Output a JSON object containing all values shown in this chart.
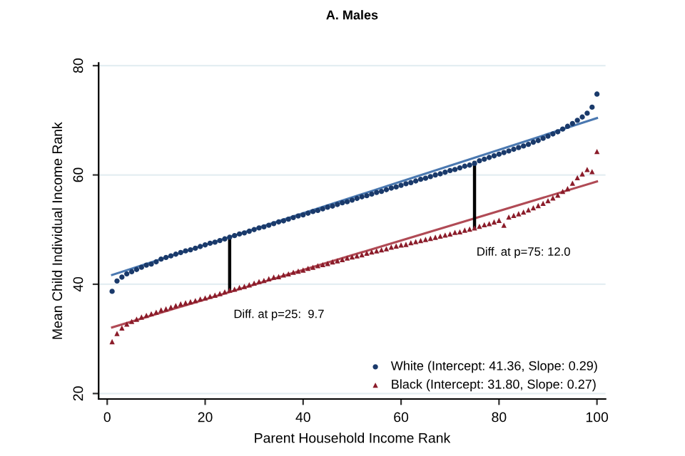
{
  "chart_data": {
    "type": "scatter",
    "title": "A. Males",
    "xlabel": "Parent Household Income Rank",
    "ylabel": "Mean Child Individual Income Rank",
    "xlim": [
      -1.75,
      101.75
    ],
    "ylim": [
      19,
      80.5
    ],
    "xticks": [
      0,
      20,
      40,
      60,
      80,
      100
    ],
    "yticks": [
      20,
      40,
      60,
      80
    ],
    "grid": "y",
    "legend": "bottom right",
    "x": [
      1,
      2,
      3,
      4,
      5,
      6,
      7,
      8,
      9,
      10,
      11,
      12,
      13,
      14,
      15,
      16,
      17,
      18,
      19,
      20,
      21,
      22,
      23,
      24,
      25,
      26,
      27,
      28,
      29,
      30,
      31,
      32,
      33,
      34,
      35,
      36,
      37,
      38,
      39,
      40,
      41,
      42,
      43,
      44,
      45,
      46,
      47,
      48,
      49,
      50,
      51,
      52,
      53,
      54,
      55,
      56,
      57,
      58,
      59,
      60,
      61,
      62,
      63,
      64,
      65,
      66,
      67,
      68,
      69,
      70,
      71,
      72,
      73,
      74,
      75,
      76,
      77,
      78,
      79,
      80,
      81,
      82,
      83,
      84,
      85,
      86,
      87,
      88,
      89,
      90,
      91,
      92,
      93,
      94,
      95,
      96,
      97,
      98,
      99,
      100
    ],
    "series": [
      {
        "name": "White (Intercept: 41.36, Slope: 0.29)",
        "color": "#1a3a6b",
        "marker": "circle",
        "values": [
          38.7,
          40.6,
          41.3,
          41.9,
          42.3,
          42.7,
          43.1,
          43.5,
          43.7,
          44.1,
          44.6,
          44.9,
          45.2,
          45.5,
          45.8,
          46.1,
          46.3,
          46.6,
          46.9,
          47.2,
          47.5,
          47.7,
          48.0,
          48.3,
          48.6,
          48.9,
          49.2,
          49.4,
          49.7,
          50.0,
          50.3,
          50.5,
          50.8,
          51.1,
          51.4,
          51.6,
          51.9,
          52.2,
          52.5,
          52.7,
          53.0,
          53.3,
          53.5,
          53.8,
          54.1,
          54.3,
          54.6,
          54.9,
          55.1,
          55.4,
          55.7,
          56.0,
          56.2,
          56.5,
          56.8,
          57.0,
          57.3,
          57.6,
          57.8,
          58.1,
          58.4,
          58.6,
          58.9,
          59.2,
          59.4,
          59.7,
          60.0,
          60.2,
          60.5,
          60.8,
          61.0,
          61.3,
          61.6,
          61.8,
          62.1,
          62.6,
          62.9,
          63.2,
          63.5,
          63.8,
          64.1,
          64.4,
          64.7,
          65.0,
          65.3,
          65.6,
          66.0,
          66.3,
          66.7,
          67.1,
          67.5,
          67.9,
          68.4,
          68.9,
          69.4,
          70.0,
          70.6,
          71.3,
          72.4,
          74.8
        ]
      },
      {
        "name": "Black (Intercept: 31.80, Slope: 0.27)",
        "color": "#8b1c2a",
        "marker": "triangle",
        "values": [
          29.5,
          31.0,
          32.0,
          32.7,
          33.2,
          33.6,
          34.0,
          34.3,
          34.6,
          34.9,
          35.3,
          35.5,
          35.8,
          36.1,
          36.4,
          36.6,
          36.8,
          37.0,
          37.3,
          37.5,
          37.8,
          38.0,
          38.3,
          38.6,
          38.9,
          39.1,
          39.4,
          39.6,
          39.9,
          40.2,
          40.5,
          40.7,
          41.0,
          41.3,
          41.4,
          41.7,
          41.9,
          42.2,
          42.4,
          42.6,
          42.9,
          43.1,
          43.4,
          43.6,
          43.8,
          44.1,
          44.3,
          44.5,
          44.8,
          45.0,
          45.2,
          45.4,
          45.7,
          45.9,
          46.1,
          46.3,
          46.5,
          46.8,
          47.0,
          47.2,
          47.3,
          47.6,
          47.8,
          48.0,
          48.2,
          48.4,
          48.6,
          48.8,
          49.0,
          49.2,
          49.5,
          49.6,
          49.9,
          50.1,
          50.3,
          50.6,
          50.9,
          51.1,
          51.4,
          51.7,
          50.8,
          52.3,
          52.6,
          52.9,
          53.2,
          53.6,
          54.0,
          54.4,
          54.8,
          55.3,
          55.8,
          56.3,
          57.0,
          57.5,
          58.5,
          59.5,
          60.2,
          61.0,
          60.6,
          64.3
        ]
      },
      {
        "type": "line",
        "color": "#4a78b0",
        "x": [
          1,
          100
        ],
        "values": [
          41.7,
          70.4
        ]
      },
      {
        "type": "line",
        "color": "#b04a55",
        "x": [
          1,
          100
        ],
        "values": [
          32.1,
          58.8
        ]
      },
      {
        "type": "line",
        "color": "#000000",
        "x": [
          25,
          25
        ],
        "values": [
          38.9,
          48.6
        ]
      },
      {
        "type": "line",
        "color": "#000000",
        "x": [
          75,
          75
        ],
        "values": [
          50.3,
          62.3
        ]
      }
    ],
    "annotations": [
      {
        "text": "Diff. at p=25:  9.7",
        "x": 25,
        "y": 38.9
      },
      {
        "text": "Diff. at p=75: 12.0",
        "x": 75,
        "y": 50.3
      }
    ]
  }
}
